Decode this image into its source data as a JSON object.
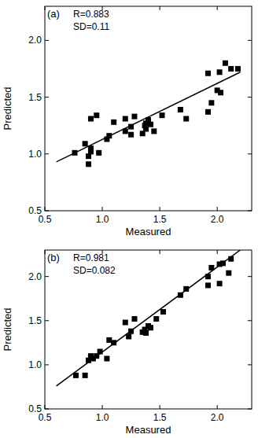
{
  "chart_data": [
    {
      "type": "scatter",
      "annotations": [
        "(a)",
        "R=0.883",
        "SD=0.11"
      ],
      "x_label": "Measured",
      "y_label": "Predicted",
      "xlim": [
        0.5,
        2.3
      ],
      "ylim": [
        0.5,
        2.3
      ],
      "xticks": [
        0.5,
        {
          "value": 1,
          "label": "1.0"
        },
        1.5,
        {
          "value": 2,
          "label": "2.0"
        }
      ],
      "yticks": [
        0.5,
        {
          "value": 1,
          "label": "1.0"
        },
        1.5,
        {
          "value": 2,
          "label": "2.0"
        }
      ],
      "series": [
        {
          "type": "scatter",
          "marker": "square",
          "color": "#000000",
          "x": [
            0.76,
            0.85,
            0.88,
            0.88,
            0.9,
            0.9,
            0.9,
            0.95,
            0.97,
            1.04,
            1.06,
            1.1,
            1.2,
            1.2,
            1.25,
            1.25,
            1.28,
            1.35,
            1.37,
            1.38,
            1.38,
            1.4,
            1.42,
            1.45,
            1.52,
            1.68,
            1.73,
            1.92,
            1.92,
            1.95,
            2.0,
            2.02,
            2.03,
            2.07,
            2.12,
            2.18
          ],
          "values": [
            1.01,
            1.09,
            0.91,
            0.98,
            1.05,
            1.02,
            1.31,
            1.34,
            1.01,
            1.13,
            1.16,
            1.28,
            1.31,
            1.2,
            1.17,
            1.24,
            1.33,
            1.18,
            1.25,
            1.22,
            1.27,
            1.3,
            1.26,
            1.2,
            1.34,
            1.39,
            1.31,
            1.71,
            1.37,
            1.45,
            1.56,
            1.72,
            1.54,
            1.8,
            1.75,
            1.75
          ]
        },
        {
          "type": "line",
          "color": "#000000",
          "x": [
            0.6,
            2.2
          ],
          "values": [
            0.93,
            1.72
          ]
        }
      ]
    },
    {
      "type": "scatter",
      "annotations": [
        "(b)",
        "R=0.981",
        "SD=0.082"
      ],
      "x_label": "Measured",
      "y_label": "Predicted",
      "xlim": [
        0.5,
        2.3
      ],
      "ylim": [
        0.5,
        2.3
      ],
      "xticks": [
        0.5,
        {
          "value": 1,
          "label": "1.0"
        },
        1.5,
        {
          "value": 2,
          "label": "2.0"
        }
      ],
      "yticks": [
        0.5,
        {
          "value": 1,
          "label": "1.0"
        },
        1.5,
        {
          "value": 2,
          "label": "2.0"
        }
      ],
      "series": [
        {
          "type": "scatter",
          "marker": "square",
          "color": "#000000",
          "x": [
            0.77,
            0.85,
            0.88,
            0.9,
            0.9,
            0.92,
            0.95,
            0.98,
            1.04,
            1.06,
            1.1,
            1.2,
            1.23,
            1.25,
            1.28,
            1.35,
            1.37,
            1.38,
            1.4,
            1.42,
            1.47,
            1.53,
            1.68,
            1.73,
            1.92,
            1.92,
            1.95,
            2.02,
            2.02,
            2.05,
            2.1,
            2.12
          ],
          "values": [
            0.88,
            0.88,
            1.05,
            1.08,
            1.1,
            1.07,
            1.1,
            1.15,
            1.07,
            1.28,
            1.25,
            1.48,
            1.32,
            1.38,
            1.52,
            1.37,
            1.4,
            1.36,
            1.44,
            1.42,
            1.52,
            1.6,
            1.79,
            1.86,
            1.9,
            2.0,
            2.1,
            1.92,
            2.14,
            2.15,
            2.04,
            2.2
          ]
        },
        {
          "type": "line",
          "color": "#000000",
          "x": [
            0.6,
            2.2
          ],
          "values": [
            0.76,
            2.3
          ]
        }
      ]
    }
  ]
}
